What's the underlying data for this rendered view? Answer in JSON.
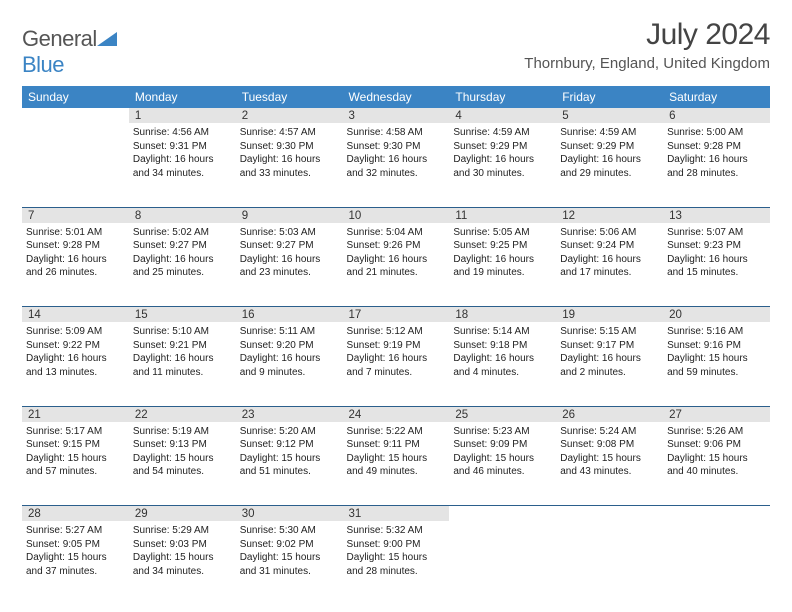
{
  "logo": {
    "word1": "General",
    "word2": "Blue"
  },
  "title": "July 2024",
  "location": "Thornbury, England, United Kingdom",
  "colors": {
    "header_bg": "#3b84c4",
    "header_text": "#ffffff",
    "daynum_bg": "#e4e4e4",
    "row_divider": "#2b5f8c",
    "logo_gray": "#555555",
    "logo_blue": "#3b84c4"
  },
  "day_headers": [
    "Sunday",
    "Monday",
    "Tuesday",
    "Wednesday",
    "Thursday",
    "Friday",
    "Saturday"
  ],
  "weeks": [
    {
      "nums": [
        "",
        "1",
        "2",
        "3",
        "4",
        "5",
        "6"
      ],
      "cells": [
        null,
        {
          "sunrise": "4:56 AM",
          "sunset": "9:31 PM",
          "daylight": "16 hours and 34 minutes."
        },
        {
          "sunrise": "4:57 AM",
          "sunset": "9:30 PM",
          "daylight": "16 hours and 33 minutes."
        },
        {
          "sunrise": "4:58 AM",
          "sunset": "9:30 PM",
          "daylight": "16 hours and 32 minutes."
        },
        {
          "sunrise": "4:59 AM",
          "sunset": "9:29 PM",
          "daylight": "16 hours and 30 minutes."
        },
        {
          "sunrise": "4:59 AM",
          "sunset": "9:29 PM",
          "daylight": "16 hours and 29 minutes."
        },
        {
          "sunrise": "5:00 AM",
          "sunset": "9:28 PM",
          "daylight": "16 hours and 28 minutes."
        }
      ]
    },
    {
      "nums": [
        "7",
        "8",
        "9",
        "10",
        "11",
        "12",
        "13"
      ],
      "cells": [
        {
          "sunrise": "5:01 AM",
          "sunset": "9:28 PM",
          "daylight": "16 hours and 26 minutes."
        },
        {
          "sunrise": "5:02 AM",
          "sunset": "9:27 PM",
          "daylight": "16 hours and 25 minutes."
        },
        {
          "sunrise": "5:03 AM",
          "sunset": "9:27 PM",
          "daylight": "16 hours and 23 minutes."
        },
        {
          "sunrise": "5:04 AM",
          "sunset": "9:26 PM",
          "daylight": "16 hours and 21 minutes."
        },
        {
          "sunrise": "5:05 AM",
          "sunset": "9:25 PM",
          "daylight": "16 hours and 19 minutes."
        },
        {
          "sunrise": "5:06 AM",
          "sunset": "9:24 PM",
          "daylight": "16 hours and 17 minutes."
        },
        {
          "sunrise": "5:07 AM",
          "sunset": "9:23 PM",
          "daylight": "16 hours and 15 minutes."
        }
      ]
    },
    {
      "nums": [
        "14",
        "15",
        "16",
        "17",
        "18",
        "19",
        "20"
      ],
      "cells": [
        {
          "sunrise": "5:09 AM",
          "sunset": "9:22 PM",
          "daylight": "16 hours and 13 minutes."
        },
        {
          "sunrise": "5:10 AM",
          "sunset": "9:21 PM",
          "daylight": "16 hours and 11 minutes."
        },
        {
          "sunrise": "5:11 AM",
          "sunset": "9:20 PM",
          "daylight": "16 hours and 9 minutes."
        },
        {
          "sunrise": "5:12 AM",
          "sunset": "9:19 PM",
          "daylight": "16 hours and 7 minutes."
        },
        {
          "sunrise": "5:14 AM",
          "sunset": "9:18 PM",
          "daylight": "16 hours and 4 minutes."
        },
        {
          "sunrise": "5:15 AM",
          "sunset": "9:17 PM",
          "daylight": "16 hours and 2 minutes."
        },
        {
          "sunrise": "5:16 AM",
          "sunset": "9:16 PM",
          "daylight": "15 hours and 59 minutes."
        }
      ]
    },
    {
      "nums": [
        "21",
        "22",
        "23",
        "24",
        "25",
        "26",
        "27"
      ],
      "cells": [
        {
          "sunrise": "5:17 AM",
          "sunset": "9:15 PM",
          "daylight": "15 hours and 57 minutes."
        },
        {
          "sunrise": "5:19 AM",
          "sunset": "9:13 PM",
          "daylight": "15 hours and 54 minutes."
        },
        {
          "sunrise": "5:20 AM",
          "sunset": "9:12 PM",
          "daylight": "15 hours and 51 minutes."
        },
        {
          "sunrise": "5:22 AM",
          "sunset": "9:11 PM",
          "daylight": "15 hours and 49 minutes."
        },
        {
          "sunrise": "5:23 AM",
          "sunset": "9:09 PM",
          "daylight": "15 hours and 46 minutes."
        },
        {
          "sunrise": "5:24 AM",
          "sunset": "9:08 PM",
          "daylight": "15 hours and 43 minutes."
        },
        {
          "sunrise": "5:26 AM",
          "sunset": "9:06 PM",
          "daylight": "15 hours and 40 minutes."
        }
      ]
    },
    {
      "nums": [
        "28",
        "29",
        "30",
        "31",
        "",
        "",
        ""
      ],
      "cells": [
        {
          "sunrise": "5:27 AM",
          "sunset": "9:05 PM",
          "daylight": "15 hours and 37 minutes."
        },
        {
          "sunrise": "5:29 AM",
          "sunset": "9:03 PM",
          "daylight": "15 hours and 34 minutes."
        },
        {
          "sunrise": "5:30 AM",
          "sunset": "9:02 PM",
          "daylight": "15 hours and 31 minutes."
        },
        {
          "sunrise": "5:32 AM",
          "sunset": "9:00 PM",
          "daylight": "15 hours and 28 minutes."
        },
        null,
        null,
        null
      ]
    }
  ],
  "labels": {
    "sunrise": "Sunrise:",
    "sunset": "Sunset:",
    "daylight": "Daylight:"
  }
}
